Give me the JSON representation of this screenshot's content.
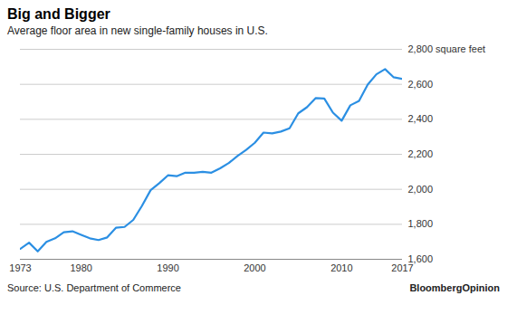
{
  "chart_data": {
    "type": "line",
    "title": "Big and Bigger",
    "subtitle": "Average floor area in new single-family houses in U.S.",
    "source": "Source: U.S. Department of Commerce",
    "logo": "BloombergOpinion",
    "x": [
      1973,
      1974,
      1975,
      1976,
      1977,
      1978,
      1979,
      1980,
      1981,
      1982,
      1983,
      1984,
      1985,
      1986,
      1987,
      1988,
      1989,
      1990,
      1991,
      1992,
      1993,
      1994,
      1995,
      1996,
      1997,
      1998,
      1999,
      2000,
      2001,
      2002,
      2003,
      2004,
      2005,
      2006,
      2007,
      2008,
      2009,
      2010,
      2011,
      2012,
      2013,
      2014,
      2015,
      2016,
      2017
    ],
    "values": [
      1660,
      1695,
      1645,
      1700,
      1720,
      1755,
      1760,
      1740,
      1720,
      1710,
      1725,
      1780,
      1785,
      1825,
      1905,
      1995,
      2035,
      2080,
      2075,
      2095,
      2095,
      2100,
      2095,
      2120,
      2150,
      2190,
      2225,
      2266,
      2324,
      2320,
      2330,
      2349,
      2434,
      2469,
      2521,
      2519,
      2438,
      2392,
      2480,
      2505,
      2598,
      2657,
      2687,
      2640,
      2631
    ],
    "color": "#2b8fe3",
    "xlim": [
      1973,
      2017
    ],
    "xticks": [
      1973,
      1980,
      1990,
      2000,
      2010,
      2017
    ],
    "ylim": [
      1600,
      2800
    ],
    "yticks": [
      {
        "value": 1600,
        "label": "1,600"
      },
      {
        "value": 1800,
        "label": "1,800"
      },
      {
        "value": 2000,
        "label": "2,000"
      },
      {
        "value": 2200,
        "label": "2,200"
      },
      {
        "value": 2400,
        "label": "2,400"
      },
      {
        "value": 2600,
        "label": "2,600"
      },
      {
        "value": 2800,
        "label": "2,800 square feet"
      }
    ],
    "grid": true
  }
}
